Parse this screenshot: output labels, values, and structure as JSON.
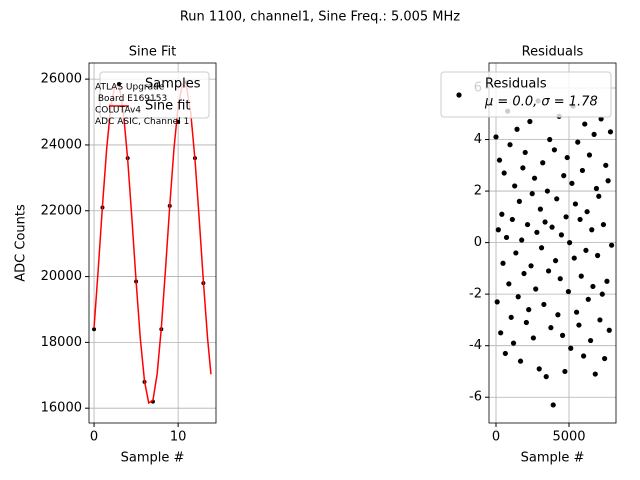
{
  "suptitle": "Run 1100, channel1, Sine Freq.: 5.005 MHz",
  "chart_data": [
    {
      "type": "scatter",
      "title": "Sine Fit",
      "x_label": "Sample #",
      "y_label": "ADC Counts",
      "xlim": [
        -0.6,
        14.5
      ],
      "ylim": [
        15550,
        26490
      ],
      "xticks": [
        0,
        10
      ],
      "yticks": [
        16000,
        18000,
        20000,
        22000,
        24000,
        26000
      ],
      "grid": true,
      "legend": "upper right",
      "annotation": [
        "ATLAS Upgrade",
        " Board E169153",
        "COLUTAv4",
        "ADC ASIC, Channel 1"
      ],
      "series": [
        {
          "name": "Samples",
          "color": "#000000",
          "marker": true,
          "x": [
            0,
            1,
            2,
            3,
            4,
            5,
            6,
            7,
            8,
            9,
            10,
            11,
            12,
            13
          ],
          "values": [
            18400,
            22100,
            25200,
            25850,
            23600,
            19850,
            16800,
            16200,
            18400,
            22150,
            24700,
            25900,
            23600,
            19800
          ]
        },
        {
          "name": "Sine fit",
          "color": "#ff0000",
          "marker": false,
          "x": [
            0,
            0.5,
            1,
            1.5,
            2,
            2.5,
            3,
            3.5,
            4,
            4.5,
            5,
            5.5,
            6,
            6.5,
            7,
            7.5,
            8,
            8.5,
            9,
            9.5,
            10,
            10.5,
            11,
            11.5,
            12,
            12.5,
            13,
            13.5,
            13.9
          ],
          "values": [
            18439,
            20234,
            22144,
            23880,
            25178,
            25840,
            25765,
            24964,
            23560,
            21766,
            19856,
            18120,
            16822,
            16160,
            16235,
            17036,
            18440,
            20234,
            22144,
            23880,
            25178,
            25840,
            25765,
            24964,
            23560,
            21766,
            19856,
            18120,
            17030
          ]
        }
      ]
    },
    {
      "type": "scatter",
      "title": "Residuals",
      "x_label": "Sample #",
      "xlim": [
        -480,
        8220
      ],
      "ylim": [
        -7,
        6.97
      ],
      "xticks": [
        0,
        5000
      ],
      "yticks": [
        -6,
        -4,
        -2,
        0,
        2,
        4,
        6
      ],
      "grid": true,
      "legend": "upper right",
      "legend_note": "μ = 0.0, σ = 1.78",
      "series": [
        {
          "name": "Residuals",
          "color": "#000000",
          "marker": true,
          "x": [
            0,
            80,
            160,
            240,
            320,
            400,
            480,
            560,
            640,
            720,
            800,
            880,
            960,
            1040,
            1120,
            1200,
            1280,
            1360,
            1440,
            1520,
            1600,
            1680,
            1760,
            1840,
            1920,
            2000,
            2080,
            2160,
            2240,
            2320,
            2400,
            2480,
            2560,
            2640,
            2720,
            2800,
            2880,
            2960,
            3040,
            3120,
            3200,
            3280,
            3360,
            3440,
            3520,
            3600,
            3680,
            3760,
            3840,
            3920,
            4000,
            4080,
            4160,
            4240,
            4320,
            4400,
            4480,
            4560,
            4640,
            4720,
            4800,
            4880,
            4960,
            5040,
            5120,
            5200,
            5280,
            5360,
            5440,
            5520,
            5600,
            5680,
            5760,
            5840,
            5920,
            6000,
            6080,
            6160,
            6240,
            6320,
            6400,
            6480,
            6560,
            6640,
            6720,
            6800,
            6880,
            6960,
            7040,
            7120,
            7200,
            7280,
            7360,
            7440,
            7520,
            7600,
            7680,
            7760,
            7840,
            7920
          ],
          "values": [
            4.1,
            -2.3,
            0.5,
            3.2,
            -3.5,
            1.1,
            -0.8,
            2.7,
            -4.3,
            0.2,
            5.1,
            -1.6,
            3.8,
            -2.9,
            0.9,
            -3.9,
            2.2,
            -0.4,
            4.4,
            -2.1,
            1.6,
            -4.6,
            0.1,
            2.9,
            -1.2,
            3.5,
            -3.1,
            0.7,
            -2.6,
            4.7,
            -0.9,
            1.9,
            -3.7,
            2.5,
            -1.8,
            0.4,
            5.5,
            -4.9,
            1.3,
            -0.2,
            3.1,
            -2.4,
            0.8,
            -5.2,
            2.0,
            -1.1,
            4.0,
            -3.3,
            0.6,
            -6.3,
            3.6,
            -0.7,
            1.7,
            -2.8,
            4.9,
            -1.4,
            0.3,
            -3.6,
            2.6,
            -5.0,
            1.0,
            3.3,
            -1.9,
            0.0,
            -4.1,
            2.3,
            5.3,
            -0.6,
            1.5,
            -2.7,
            3.9,
            -3.2,
            0.9,
            -1.3,
            2.8,
            -4.4,
            4.6,
            -0.3,
            1.2,
            -2.2,
            3.4,
            -3.8,
            0.5,
            -1.7,
            4.2,
            -5.1,
            2.1,
            -0.5,
            1.8,
            -3.0,
            4.8,
            -2.0,
            0.7,
            -4.5,
            3.0,
            -1.5,
            2.4,
            -3.4,
            4.3,
            -0.1
          ]
        }
      ]
    }
  ]
}
